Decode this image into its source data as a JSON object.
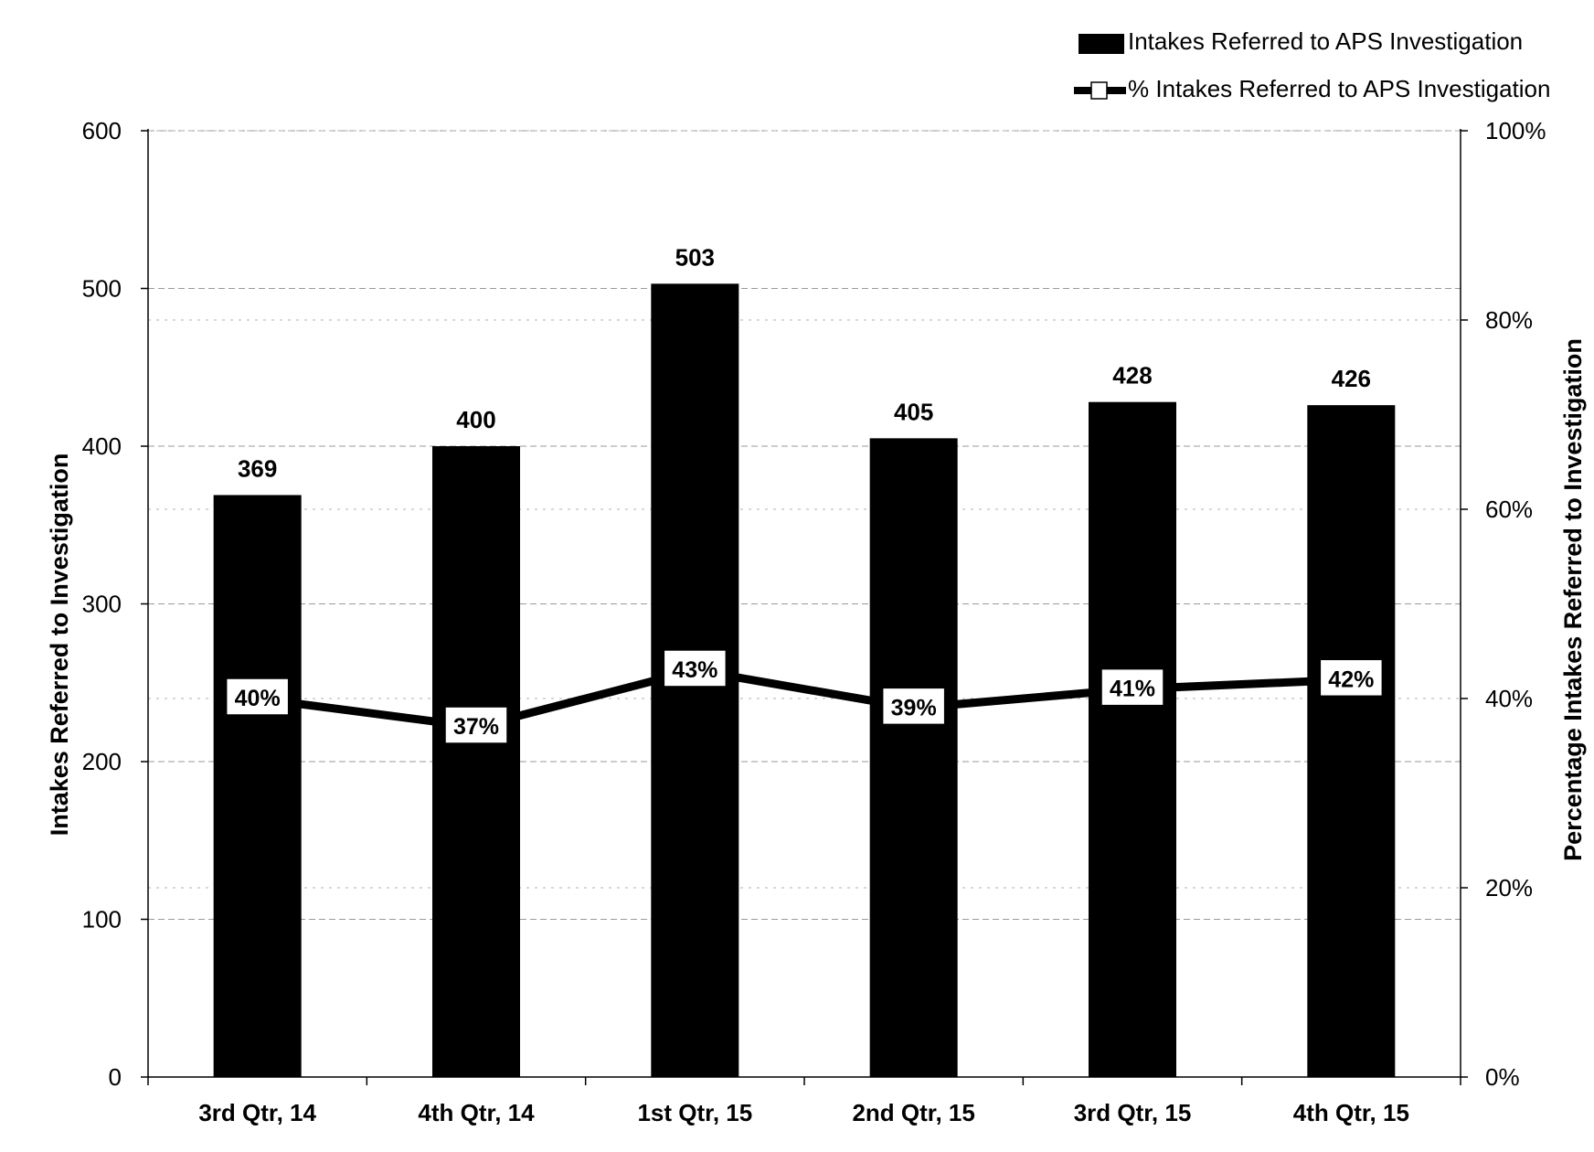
{
  "chart_data": {
    "type": "bar",
    "categories": [
      "3rd Qtr, 14",
      "4th Qtr, 14",
      "1st Qtr, 15",
      "2nd Qtr, 15",
      "3rd Qtr, 15",
      "4th Qtr, 15"
    ],
    "series": [
      {
        "name": "Intakes Referred to APS Investigation",
        "type": "bar",
        "axis": "left",
        "values": [
          369,
          400,
          503,
          405,
          428,
          426
        ],
        "labels": [
          "369",
          "400",
          "503",
          "405",
          "428",
          "426"
        ]
      },
      {
        "name": "% Intakes Referred to APS Investigation",
        "type": "line",
        "axis": "right",
        "values": [
          40,
          37,
          43,
          39,
          41,
          42
        ],
        "labels": [
          "40%",
          "37%",
          "43%",
          "39%",
          "41%",
          "42%"
        ]
      }
    ],
    "ylabel": "Intakes Referred to Investigation",
    "y2label": "Percentage Intakes Referred to Investigation",
    "ylim": [
      0,
      600
    ],
    "y2lim": [
      0,
      100
    ],
    "yticks": [
      "0",
      "100",
      "200",
      "300",
      "400",
      "500",
      "600"
    ],
    "y2ticks": [
      "0%",
      "20%",
      "40%",
      "60%",
      "80%",
      "100%"
    ],
    "grid": true,
    "legend_position": "top-right",
    "colors": {
      "bars": "#000000",
      "line": "#000000",
      "grid": "#9a9a9a"
    }
  }
}
